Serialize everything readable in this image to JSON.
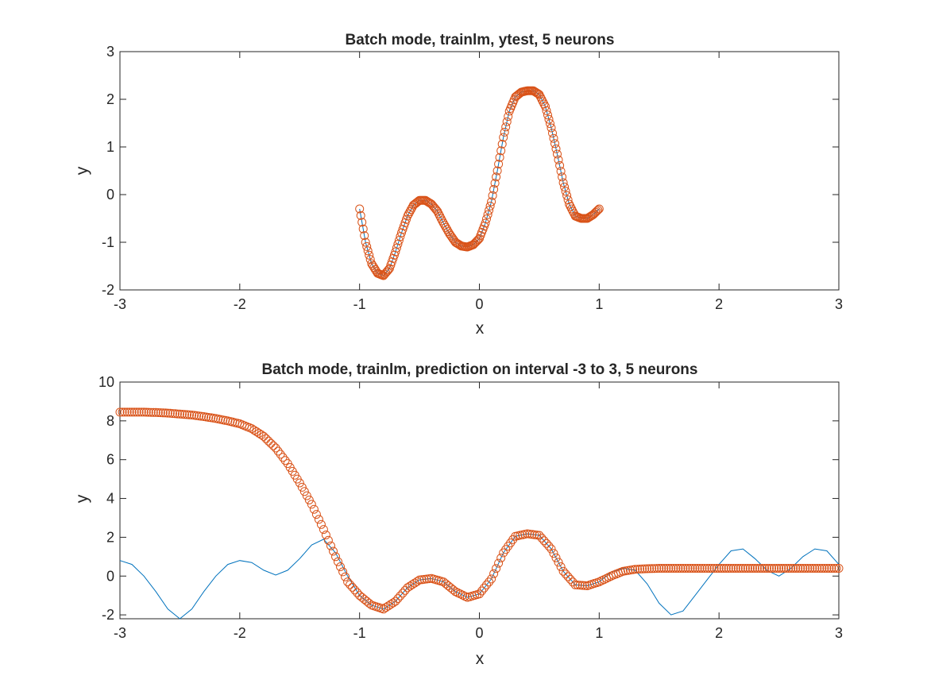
{
  "chart_data": [
    {
      "type": "line",
      "title": "Batch mode, trainlm, ytest, 5 neurons",
      "xlabel": "x",
      "ylabel": "y",
      "xlim": [
        -3,
        3
      ],
      "ylim": [
        -2,
        3
      ],
      "xticks": [
        "-3",
        "-2",
        "-1",
        "0",
        "1",
        "2",
        "3"
      ],
      "yticks": [
        "-2",
        "-1",
        "0",
        "1",
        "2",
        "3"
      ],
      "grid": false,
      "series": [
        {
          "marker": "line",
          "color": "#0072BD",
          "x": [
            -1.0,
            -0.95,
            -0.9,
            -0.85,
            -0.8,
            -0.75,
            -0.7,
            -0.65,
            -0.6,
            -0.55,
            -0.5,
            -0.45,
            -0.4,
            -0.35,
            -0.3,
            -0.25,
            -0.2,
            -0.15,
            -0.1,
            -0.05,
            0.0,
            0.05,
            0.1,
            0.15,
            0.2,
            0.25,
            0.3,
            0.35,
            0.4,
            0.45,
            0.5,
            0.55,
            0.6,
            0.65,
            0.7,
            0.75,
            0.8,
            0.85,
            0.9,
            0.95,
            1.0
          ],
          "y": [
            -0.3,
            -1.0,
            -1.45,
            -1.65,
            -1.7,
            -1.55,
            -1.2,
            -0.8,
            -0.45,
            -0.22,
            -0.12,
            -0.12,
            -0.2,
            -0.35,
            -0.6,
            -0.82,
            -1.0,
            -1.08,
            -1.1,
            -1.05,
            -0.92,
            -0.6,
            -0.15,
            0.5,
            1.2,
            1.75,
            2.05,
            2.15,
            2.18,
            2.18,
            2.1,
            1.85,
            1.4,
            0.85,
            0.25,
            -0.2,
            -0.45,
            -0.5,
            -0.5,
            -0.42,
            -0.3
          ]
        },
        {
          "marker": "circle",
          "color": "#D95319",
          "x": [
            -1.0,
            -0.95,
            -0.9,
            -0.85,
            -0.8,
            -0.75,
            -0.7,
            -0.65,
            -0.6,
            -0.55,
            -0.5,
            -0.45,
            -0.4,
            -0.35,
            -0.3,
            -0.25,
            -0.2,
            -0.15,
            -0.1,
            -0.05,
            0.0,
            0.05,
            0.1,
            0.15,
            0.2,
            0.25,
            0.3,
            0.35,
            0.4,
            0.45,
            0.5,
            0.55,
            0.6,
            0.65,
            0.7,
            0.75,
            0.8,
            0.85,
            0.9,
            0.95,
            1.0
          ],
          "y": [
            -0.3,
            -1.0,
            -1.45,
            -1.65,
            -1.7,
            -1.55,
            -1.2,
            -0.8,
            -0.45,
            -0.22,
            -0.12,
            -0.12,
            -0.2,
            -0.35,
            -0.6,
            -0.82,
            -1.0,
            -1.08,
            -1.1,
            -1.05,
            -0.92,
            -0.6,
            -0.15,
            0.5,
            1.2,
            1.75,
            2.05,
            2.15,
            2.18,
            2.18,
            2.1,
            1.85,
            1.4,
            0.85,
            0.25,
            -0.2,
            -0.45,
            -0.5,
            -0.5,
            -0.42,
            -0.3
          ]
        }
      ]
    },
    {
      "type": "line",
      "title": "Batch mode, trainlm, prediction on interval -3 to 3, 5 neurons",
      "xlabel": "x",
      "ylabel": "y",
      "xlim": [
        -3,
        3
      ],
      "ylim": [
        -2.2,
        10
      ],
      "xticks": [
        "-3",
        "-2",
        "-1",
        "0",
        "1",
        "2",
        "3"
      ],
      "yticks": [
        "-2",
        "0",
        "2",
        "4",
        "6",
        "8",
        "10"
      ],
      "grid": false,
      "series": [
        {
          "marker": "line",
          "color": "#0072BD",
          "x": [
            -3.0,
            -2.9,
            -2.8,
            -2.7,
            -2.6,
            -2.5,
            -2.4,
            -2.3,
            -2.2,
            -2.1,
            -2.0,
            -1.9,
            -1.8,
            -1.7,
            -1.6,
            -1.5,
            -1.4,
            -1.3,
            -1.2,
            -1.1,
            -1.0,
            -0.9,
            -0.8,
            -0.7,
            -0.6,
            -0.5,
            -0.4,
            -0.3,
            -0.2,
            -0.1,
            0.0,
            0.1,
            0.2,
            0.3,
            0.4,
            0.5,
            0.6,
            0.7,
            0.8,
            0.9,
            1.0,
            1.1,
            1.2,
            1.3,
            1.4,
            1.5,
            1.6,
            1.7,
            1.8,
            1.9,
            2.0,
            2.1,
            2.2,
            2.3,
            2.4,
            2.5,
            2.6,
            2.7,
            2.8,
            2.9,
            3.0
          ],
          "y": [
            0.8,
            0.6,
            0.0,
            -0.8,
            -1.7,
            -2.2,
            -1.7,
            -0.8,
            0.0,
            0.6,
            0.8,
            0.7,
            0.3,
            0.05,
            0.3,
            0.9,
            1.6,
            1.9,
            1.2,
            0.0,
            -1.0,
            -1.5,
            -1.7,
            -1.3,
            -0.6,
            -0.2,
            -0.12,
            -0.3,
            -0.8,
            -1.1,
            -0.92,
            -0.15,
            1.2,
            2.05,
            2.18,
            2.1,
            1.4,
            0.25,
            -0.45,
            -0.5,
            -0.3,
            0.2,
            0.4,
            0.3,
            -0.4,
            -1.4,
            -2.0,
            -1.8,
            -1.0,
            -0.2,
            0.6,
            1.3,
            1.4,
            0.9,
            0.3,
            0.0,
            0.4,
            1.0,
            1.4,
            1.3,
            0.6
          ]
        },
        {
          "marker": "circle",
          "color": "#D95319",
          "x": [
            -3.0,
            -2.9,
            -2.8,
            -2.7,
            -2.6,
            -2.5,
            -2.4,
            -2.3,
            -2.2,
            -2.1,
            -2.0,
            -1.9,
            -1.8,
            -1.7,
            -1.6,
            -1.5,
            -1.4,
            -1.3,
            -1.2,
            -1.1,
            -1.0,
            -0.9,
            -0.8,
            -0.7,
            -0.6,
            -0.5,
            -0.4,
            -0.3,
            -0.2,
            -0.1,
            0.0,
            0.1,
            0.2,
            0.3,
            0.4,
            0.5,
            0.6,
            0.7,
            0.8,
            0.9,
            1.0,
            1.1,
            1.2,
            1.3,
            1.4,
            1.5,
            1.6,
            1.7,
            1.8,
            1.9,
            2.0,
            2.1,
            2.2,
            2.3,
            2.4,
            2.5,
            2.6,
            2.7,
            2.8,
            2.9,
            3.0
          ],
          "y": [
            8.45,
            8.45,
            8.45,
            8.43,
            8.4,
            8.35,
            8.3,
            8.22,
            8.12,
            8.0,
            7.85,
            7.6,
            7.2,
            6.6,
            5.8,
            4.8,
            3.7,
            2.4,
            1.0,
            -0.3,
            -1.0,
            -1.5,
            -1.7,
            -1.3,
            -0.6,
            -0.2,
            -0.12,
            -0.3,
            -0.8,
            -1.1,
            -0.92,
            -0.15,
            1.2,
            2.05,
            2.18,
            2.1,
            1.4,
            0.25,
            -0.45,
            -0.5,
            -0.3,
            0.0,
            0.25,
            0.35,
            0.38,
            0.4,
            0.4,
            0.4,
            0.4,
            0.4,
            0.4,
            0.4,
            0.4,
            0.4,
            0.4,
            0.4,
            0.4,
            0.4,
            0.4,
            0.4,
            0.4
          ]
        }
      ]
    }
  ]
}
